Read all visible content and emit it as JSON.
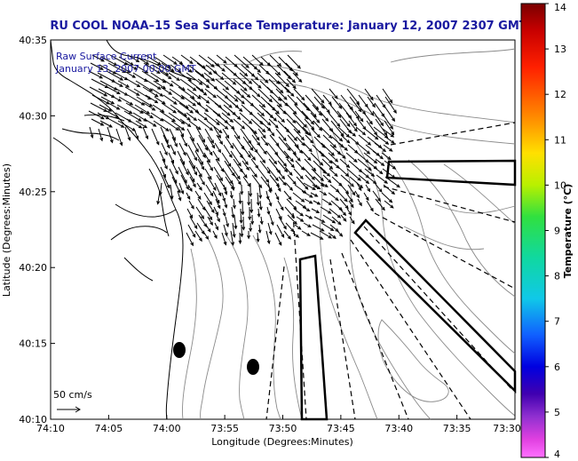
{
  "title": "RU COOL  NOAA–15  Sea Surface Temperature:  January 12, 2007 2307 GMT",
  "legend": {
    "line1": "Raw Surface Current",
    "line2": "January 13, 2007 00:00 GMT",
    "scale_label": "50 cm/s"
  },
  "axes": {
    "xlabel": "Longitude (Degrees:Minutes)",
    "ylabel": "Latitude (Degrees:Minutes)",
    "xticks": [
      "74:10",
      "74:05",
      "74:00",
      "73:55",
      "73:50",
      "73:45",
      "73:40",
      "73:35",
      "73:30"
    ],
    "yticks": [
      "40:35",
      "40:30",
      "40:25",
      "40:20",
      "40:15",
      "40:10"
    ]
  },
  "colorbar": {
    "label": "Temperature (°C)",
    "ticks": [
      "14",
      "13",
      "12",
      "11",
      "10",
      "9",
      "8",
      "7",
      "6",
      "5",
      "4"
    ]
  },
  "colors": {
    "title": "#1a1aa0",
    "contours": "#8a8a8a",
    "land_edge": "#000000"
  }
}
